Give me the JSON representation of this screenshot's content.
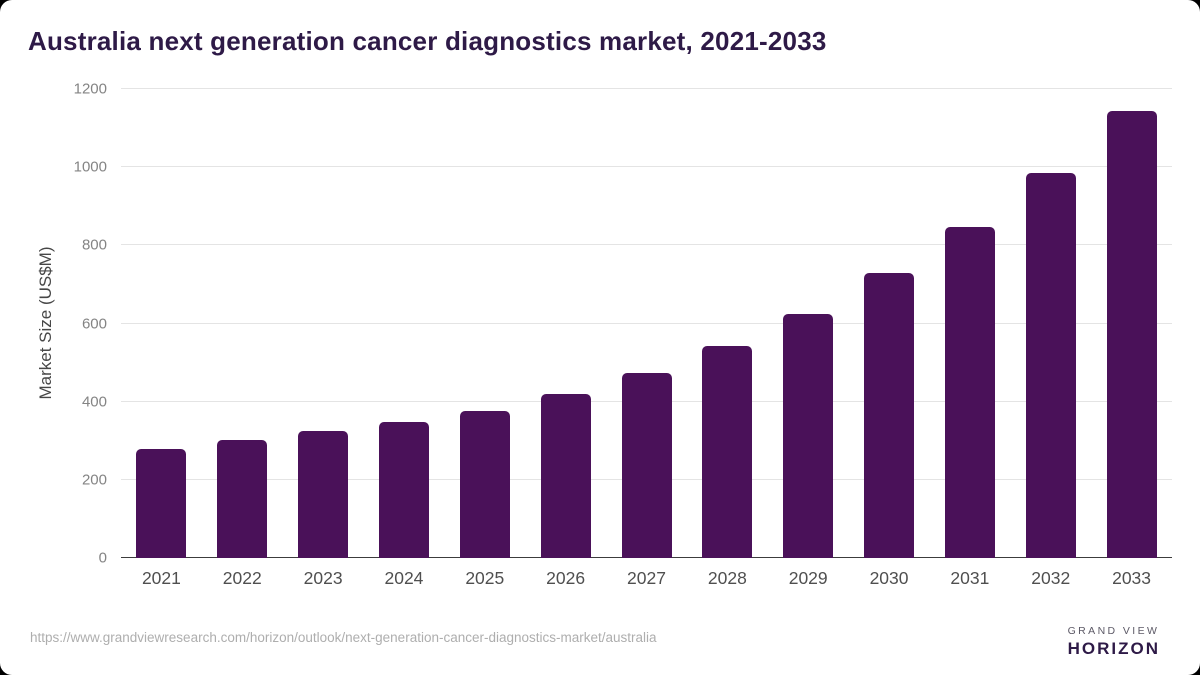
{
  "page": {
    "title": "Australia next generation cancer diagnostics market, 2021-2033"
  },
  "chart_data": {
    "type": "bar",
    "title": "Australia next generation cancer diagnostics market, 2021-2033",
    "categories": [
      "2021",
      "2022",
      "2023",
      "2024",
      "2025",
      "2026",
      "2027",
      "2028",
      "2029",
      "2030",
      "2031",
      "2032",
      "2033"
    ],
    "values": [
      280,
      303,
      326,
      349,
      377,
      420,
      473,
      543,
      624,
      730,
      846,
      985,
      1143
    ],
    "xlabel": "",
    "ylabel": "Market Size (US$M)",
    "ylim": [
      0,
      1200
    ],
    "yticks": [
      0,
      200,
      400,
      600,
      800,
      1000,
      1200
    ],
    "grid": "horizontal",
    "legend": "none",
    "bar_color": "#4a1159"
  },
  "footer": {
    "source_url": "https://www.grandviewresearch.com/horizon/outlook/next-generation-cancer-diagnostics-market/australia",
    "brand": {
      "line1": "GRAND VIEW",
      "line2": "HORIZON",
      "icon": "sunrise-horizon-icon"
    }
  },
  "colors": {
    "bar": "#4a1159",
    "title_text": "#2e1a47",
    "gridline": "#e4e4e4",
    "axis_line": "#3c3c3c",
    "y_tick_text": "#848484",
    "x_tick_text": "#4f4f4f",
    "url_text": "#aeaeae",
    "logo_purple": "#2d1849",
    "logo_blue": "#58c6f3"
  }
}
